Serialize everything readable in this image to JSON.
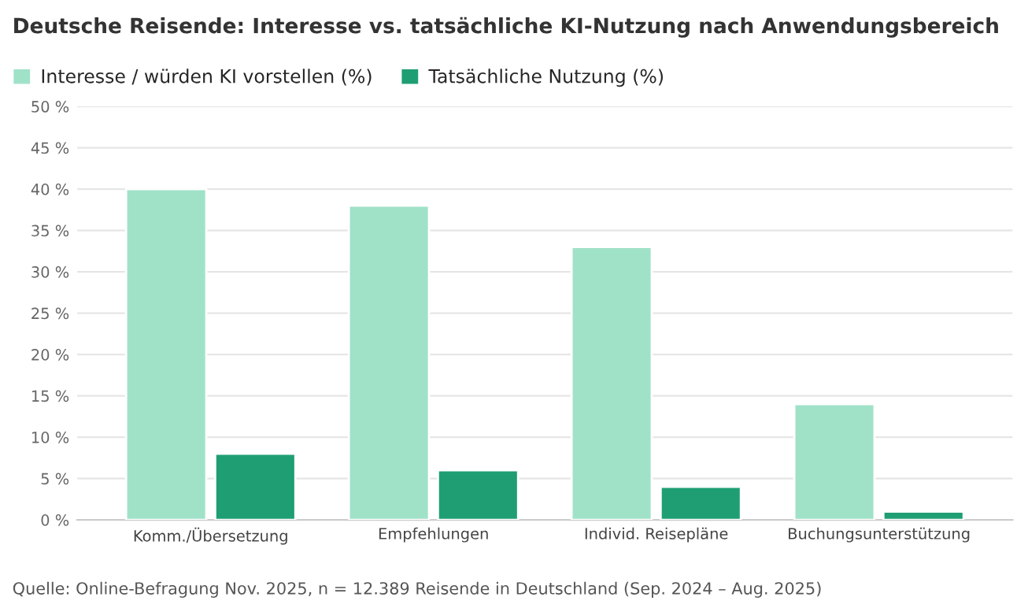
{
  "chart_data": {
    "type": "bar",
    "title": "Deutsche Reisende: Interesse vs. tatsächliche KI-Nutzung nach Anwendungsbereich",
    "categories": [
      "Komm./Übersetzung",
      "Empfehlungen",
      "Individ. Reisepläne",
      "Buchungsunterstützung"
    ],
    "series": [
      {
        "name": "Interesse / würden KI vorstellen (%)",
        "color": "#a0e2c8",
        "values": [
          40,
          38,
          33,
          14
        ]
      },
      {
        "name": "Tatsächliche Nutzung (%)",
        "color": "#1f9e74",
        "values": [
          8,
          6,
          4,
          1
        ]
      }
    ],
    "ylim": [
      0,
      50
    ],
    "yticks": [
      {
        "value": 0,
        "label": "0 %"
      },
      {
        "value": 5,
        "label": "5 %"
      },
      {
        "value": 10,
        "label": "10 %"
      },
      {
        "value": 15,
        "label": "15 %"
      },
      {
        "value": 20,
        "label": "20 %"
      },
      {
        "value": 25,
        "label": "25 %"
      },
      {
        "value": 30,
        "label": "30 %"
      },
      {
        "value": 35,
        "label": "35 %"
      },
      {
        "value": 40,
        "label": "40 %"
      },
      {
        "value": 45,
        "label": "45 %"
      },
      {
        "value": 50,
        "label": "50 %"
      }
    ],
    "grid": "y",
    "legend": "top left",
    "annotations": [
      "Quelle: Online-Befragung Nov. 2025, n = 12.389 Reisende in Deutschland (Sep. 2024 – Aug. 2025)"
    ]
  }
}
